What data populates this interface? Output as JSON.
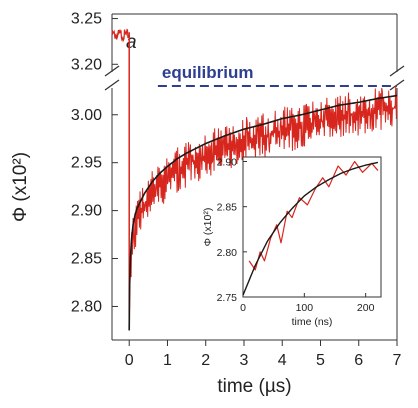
{
  "colors": {
    "data": "#d7261e",
    "fit": "#1a1a1a",
    "equilibrium": "#2e3f8f",
    "axis": "#333333"
  },
  "chart_data": [
    {
      "type": "line",
      "panel_label": "a",
      "xlabel": "time (µs)",
      "ylabel": "Φ (x10²)",
      "xlim": [
        -0.45,
        7.0
      ],
      "ylim_lower": [
        2.765,
        3.03
      ],
      "ylim_upper": [
        3.185,
        3.255
      ],
      "axis_break": true,
      "x_ticks": [
        "0",
        "1",
        "2",
        "3",
        "4",
        "5",
        "6",
        "7"
      ],
      "y_ticks": [
        "2.80",
        "2.85",
        "2.90",
        "2.95",
        "3.00",
        "3.20",
        "3.25"
      ],
      "grid": false,
      "legend": "none",
      "equilibrium": {
        "label": "equilibrium",
        "y": 3.03,
        "x_start": 0.75,
        "style": "dashed"
      },
      "series": [
        {
          "style": "noisy",
          "x": [
            -0.45,
            -0.3,
            -0.15,
            -0.05,
            0.0,
            0.01,
            0.03,
            0.06,
            0.1,
            0.15,
            0.2,
            0.3,
            0.4,
            0.6,
            0.8,
            1.0,
            1.25,
            1.5,
            2.0,
            2.5,
            3.0,
            3.5,
            4.0,
            4.5,
            5.0,
            5.5,
            6.0,
            6.5,
            7.0
          ],
          "y": [
            3.235,
            3.236,
            3.234,
            3.235,
            2.775,
            2.82,
            2.85,
            2.87,
            2.885,
            2.895,
            2.902,
            2.91,
            2.918,
            2.93,
            2.939,
            2.946,
            2.954,
            2.96,
            2.97,
            2.978,
            2.985,
            2.99,
            2.996,
            3.0,
            3.005,
            3.01,
            3.013,
            3.017,
            3.02
          ]
        },
        {
          "style": "fit",
          "x": [
            0.0,
            0.01,
            0.03,
            0.06,
            0.1,
            0.15,
            0.2,
            0.3,
            0.4,
            0.6,
            0.8,
            1.0,
            1.25,
            1.5,
            2.0,
            2.5,
            3.0,
            3.5,
            4.0,
            4.5,
            5.0,
            5.5,
            6.0,
            6.5,
            7.0
          ],
          "y": [
            2.775,
            2.82,
            2.85,
            2.87,
            2.885,
            2.895,
            2.902,
            2.91,
            2.918,
            2.93,
            2.939,
            2.946,
            2.954,
            2.96,
            2.97,
            2.978,
            2.985,
            2.99,
            2.996,
            3.0,
            3.005,
            3.01,
            3.013,
            3.017,
            3.02
          ]
        }
      ]
    },
    {
      "type": "line",
      "inset": true,
      "xlabel": "time (ns)",
      "ylabel": "Φ (x10²)",
      "xlim": [
        0,
        225
      ],
      "ylim": [
        2.75,
        2.905
      ],
      "x_ticks": [
        "0",
        "100",
        "200"
      ],
      "y_ticks": [
        "2.75",
        "2.80",
        "2.85",
        "2.90"
      ],
      "grid": false,
      "series": [
        {
          "style": "noisy",
          "x": [
            10,
            20,
            28,
            35,
            45,
            55,
            62,
            72,
            80,
            92,
            105,
            118,
            130,
            140,
            155,
            168,
            182,
            195,
            210,
            220
          ],
          "y": [
            2.79,
            2.78,
            2.8,
            2.79,
            2.815,
            2.83,
            2.81,
            2.845,
            2.838,
            2.86,
            2.852,
            2.87,
            2.882,
            2.872,
            2.895,
            2.885,
            2.9,
            2.888,
            2.898,
            2.89
          ]
        },
        {
          "style": "fit",
          "x": [
            0,
            20,
            40,
            60,
            80,
            100,
            120,
            140,
            160,
            180,
            200,
            220
          ],
          "y": [
            2.752,
            2.785,
            2.812,
            2.832,
            2.848,
            2.862,
            2.872,
            2.88,
            2.887,
            2.892,
            2.896,
            2.899
          ]
        }
      ]
    }
  ]
}
